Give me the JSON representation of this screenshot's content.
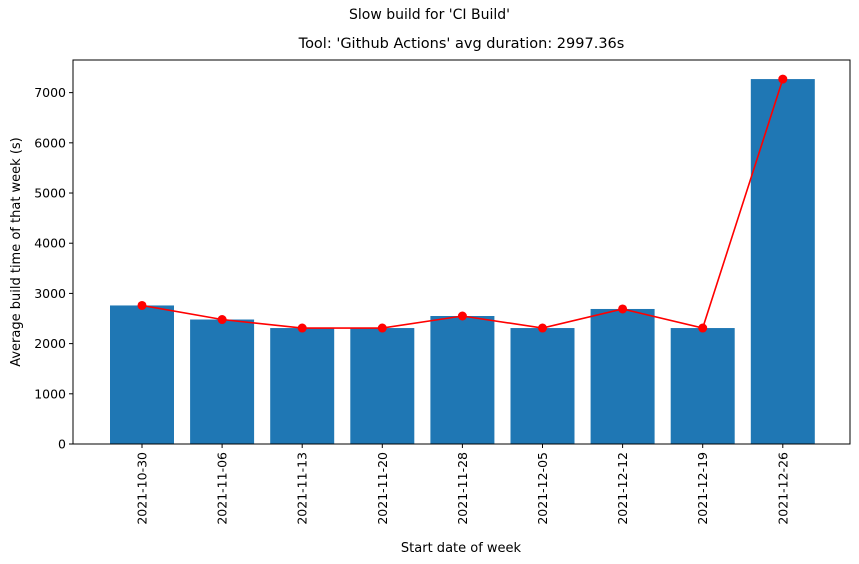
{
  "chart_data": {
    "type": "bar",
    "suptitle": "Slow build for 'CI Build'",
    "title": "Tool: 'Github Actions' avg duration: 2997.36s",
    "xlabel": "Start date of week",
    "ylabel": "Average build time of that week (s)",
    "categories": [
      "2021-10-30",
      "2021-11-06",
      "2021-11-13",
      "2021-11-20",
      "2021-11-28",
      "2021-12-05",
      "2021-12-12",
      "2021-12-19",
      "2021-12-26"
    ],
    "series": [
      {
        "type": "bar",
        "values": [
          2760,
          2480,
          2310,
          2310,
          2550,
          2310,
          2690,
          2310,
          7270
        ],
        "color": "#1f77b4"
      },
      {
        "type": "line",
        "values": [
          2760,
          2480,
          2310,
          2310,
          2550,
          2310,
          2690,
          2310,
          7270
        ],
        "color": "#ff0000",
        "marker": "circle"
      }
    ],
    "ylim": [
      0,
      7650
    ],
    "yticks": [
      0,
      1000,
      2000,
      3000,
      4000,
      5000,
      6000,
      7000
    ],
    "grid": false
  }
}
